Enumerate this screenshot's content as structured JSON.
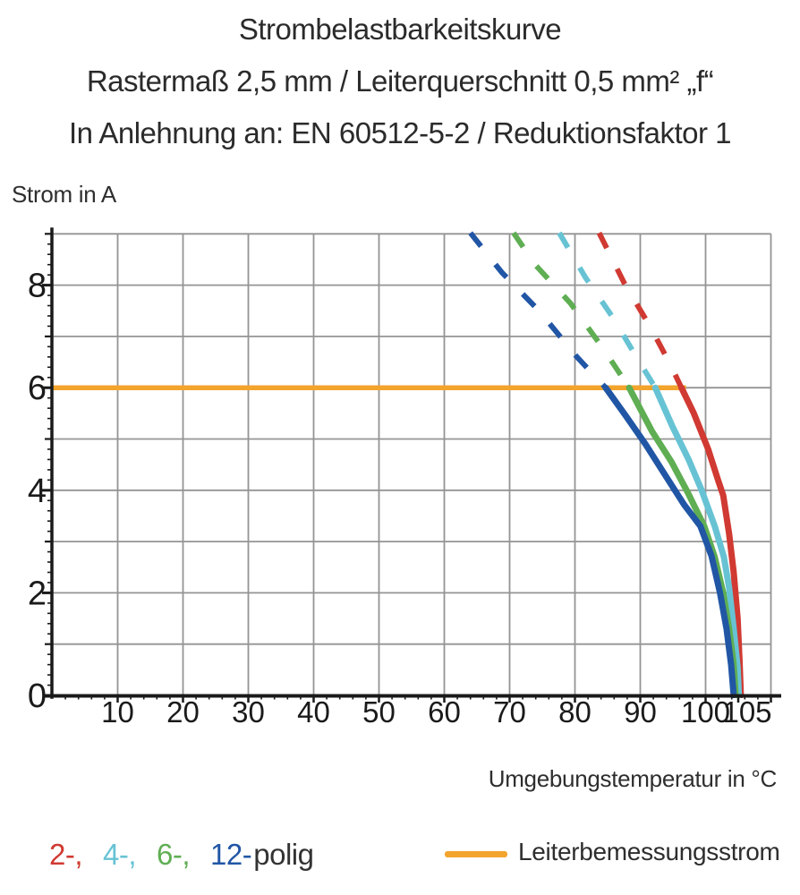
{
  "title": {
    "line1": "Strombelastbarkeitskurve",
    "line2": "Rastermaß 2,5 mm / Leiterquerschnitt 0,5 mm² „f“",
    "line3": "In Anlehnung an: EN 60512-5-2 / Reduktionsfaktor 1"
  },
  "axes": {
    "y_label": "Strom in A",
    "x_label": "Umgebungstemperatur in °C"
  },
  "legend": {
    "pole_items": [
      {
        "label": "2-,",
        "color": "#d03a32"
      },
      {
        "label": "4-,",
        "color": "#67c3d4"
      },
      {
        "label": "6-,",
        "color": "#5fae53"
      },
      {
        "label": "12-",
        "color": "#2156a5"
      },
      {
        "label": "polig",
        "color": "#333333"
      }
    ],
    "reference": {
      "label": "Leiterbemessungsstrom",
      "color": "#f3a42c"
    }
  },
  "chart_data": {
    "type": "line",
    "title": "Strombelastbarkeitskurve",
    "xlabel": "Umgebungstemperatur in °C",
    "ylabel": "Strom in A",
    "xlim": [
      0,
      110.3
    ],
    "ylim": [
      0,
      9.02
    ],
    "grid": true,
    "x_grid_step": 10,
    "y_grid_step": 1,
    "x_minor_step": 2,
    "y_minor_step": 0.2,
    "x_ticks": [
      10,
      20,
      30,
      40,
      50,
      60,
      70,
      80,
      90,
      100,
      105
    ],
    "y_ticks": [
      0,
      2,
      4,
      6,
      8
    ],
    "grid_color": "#949494",
    "axis_color": "#1a1a1a",
    "reference_line": {
      "name": "Leiterbemessungsstrom",
      "y": 6,
      "x_range": [
        0,
        97
      ],
      "color": "#f3a42c"
    },
    "series": [
      {
        "name": "2-polig",
        "color": "#d03a32",
        "dashed": [
          [
            83.7,
            9.02
          ],
          [
            87.5,
            8.05
          ],
          [
            91.7,
            7.15
          ],
          [
            94.6,
            6.45
          ],
          [
            96.3,
            6.0
          ]
        ],
        "solid": [
          [
            96.3,
            6.0
          ],
          [
            98.2,
            5.5
          ],
          [
            100.4,
            4.8
          ],
          [
            101.9,
            4.2
          ],
          [
            102.7,
            3.9
          ],
          [
            103.6,
            3.15
          ],
          [
            104.3,
            2.4
          ],
          [
            104.9,
            1.5
          ],
          [
            105.2,
            0.65
          ],
          [
            105.4,
            0
          ]
        ]
      },
      {
        "name": "4-polig",
        "color": "#67c3d4",
        "dashed": [
          [
            77.6,
            9.02
          ],
          [
            81.6,
            8.15
          ],
          [
            85.9,
            7.35
          ],
          [
            89.4,
            6.6
          ],
          [
            92.3,
            6.0
          ]
        ],
        "solid": [
          [
            92.3,
            6.0
          ],
          [
            94.9,
            5.25
          ],
          [
            97.4,
            4.6
          ],
          [
            99.4,
            4.0
          ],
          [
            101.4,
            3.3
          ],
          [
            102.8,
            2.7
          ],
          [
            103.6,
            2.1
          ],
          [
            104.3,
            1.3
          ],
          [
            104.9,
            0.55
          ],
          [
            105.1,
            0
          ]
        ]
      },
      {
        "name": "6-polig",
        "color": "#5fae53",
        "dashed": [
          [
            70.6,
            9.02
          ],
          [
            73.9,
            8.4
          ],
          [
            79.3,
            7.65
          ],
          [
            84.4,
            6.75
          ],
          [
            88.3,
            6.0
          ]
        ],
        "solid": [
          [
            88.3,
            6.0
          ],
          [
            91.8,
            5.15
          ],
          [
            94.8,
            4.55
          ],
          [
            97.3,
            3.95
          ],
          [
            99.8,
            3.3
          ],
          [
            101.4,
            2.7
          ],
          [
            102.7,
            2.0
          ],
          [
            103.6,
            1.3
          ],
          [
            104.3,
            0.6
          ],
          [
            104.6,
            0
          ]
        ]
      },
      {
        "name": "12-polig",
        "color": "#2156a5",
        "dashed": [
          [
            64.0,
            9.02
          ],
          [
            68.8,
            8.25
          ],
          [
            74.5,
            7.5
          ],
          [
            80.3,
            6.6
          ],
          [
            84.7,
            6.0
          ]
        ],
        "solid": [
          [
            84.7,
            6.0
          ],
          [
            87.8,
            5.45
          ],
          [
            90.8,
            4.9
          ],
          [
            93.8,
            4.3
          ],
          [
            96.7,
            3.72
          ],
          [
            99.2,
            3.3
          ],
          [
            100.9,
            2.72
          ],
          [
            102.2,
            2.0
          ],
          [
            103.2,
            1.3
          ],
          [
            103.9,
            0.6
          ],
          [
            104.3,
            0
          ]
        ]
      }
    ]
  }
}
